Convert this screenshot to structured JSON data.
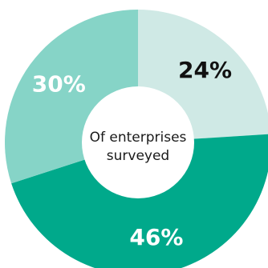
{
  "chart_data": {
    "type": "pie",
    "donut": true,
    "categories": [
      "",
      "",
      ""
    ],
    "values": [
      24,
      46,
      30
    ],
    "value_labels": [
      "24%",
      "46%",
      "30%"
    ],
    "colors": [
      "#cfe9e5",
      "#00a98b",
      "#86d4c7"
    ],
    "label_colors": [
      "#111111",
      "#ffffff",
      "#ffffff"
    ],
    "center_text": [
      "Of enterprises",
      "surveyed"
    ],
    "start_angle_deg": 0,
    "direction": "clockwise",
    "legend": "none"
  }
}
